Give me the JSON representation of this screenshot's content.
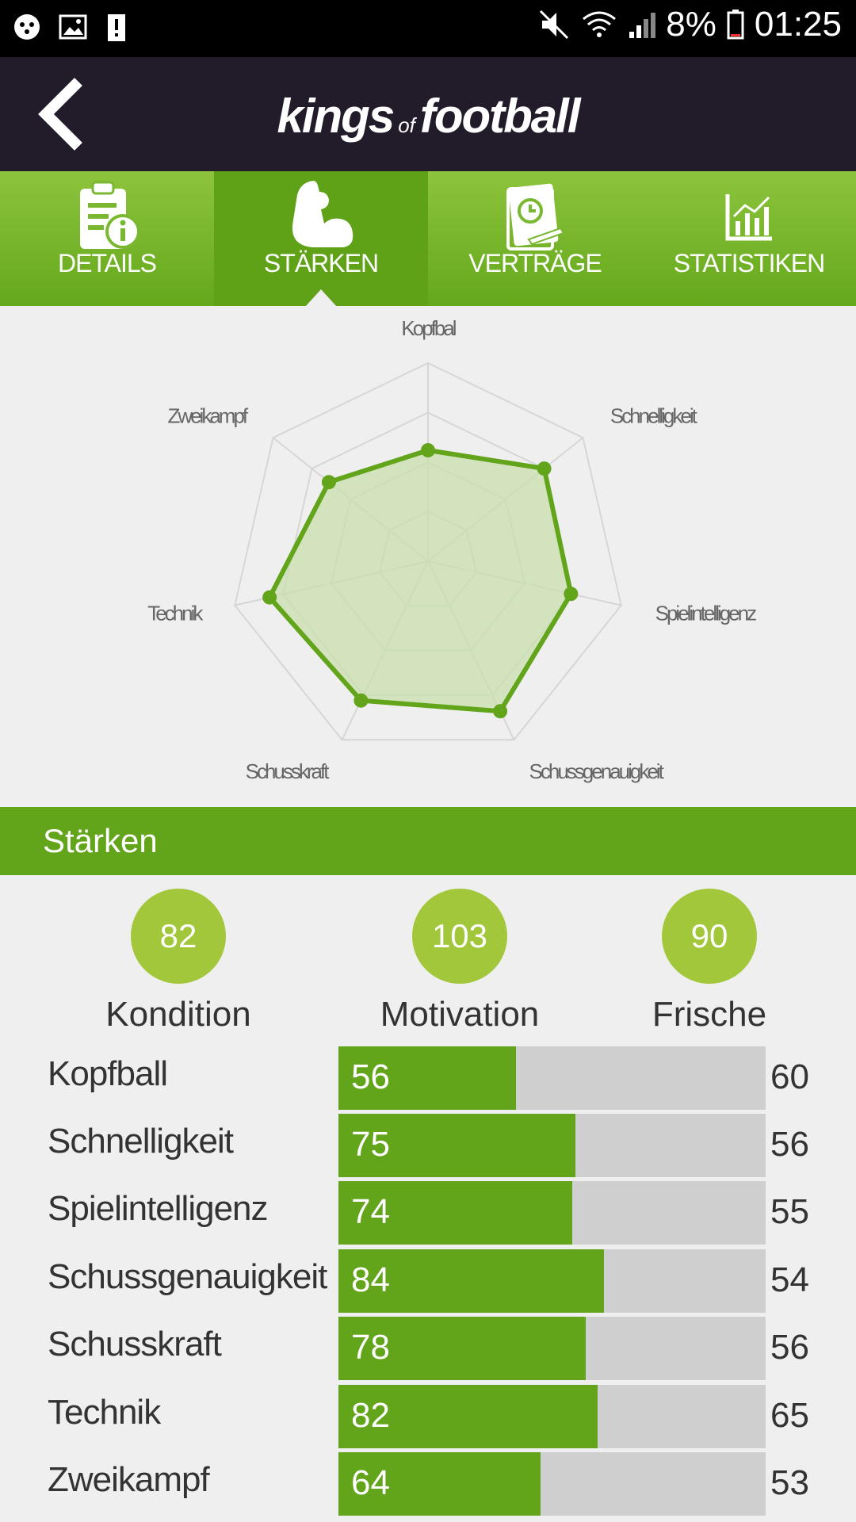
{
  "status_bar": {
    "battery": "8%",
    "time": "01:25",
    "icons": [
      "game-icon",
      "image-icon",
      "alert-icon",
      "mute-icon",
      "wifi-icon",
      "signal-icon",
      "battery-icon"
    ]
  },
  "app": {
    "brand_left": "kings",
    "brand_of": "of",
    "brand_right": "football",
    "back_icon": "chevron-left-icon"
  },
  "tabs": [
    {
      "label": "DETAILS",
      "icon": "details-icon",
      "active": false
    },
    {
      "label": "STÄRKEN",
      "icon": "muscle-icon",
      "active": true
    },
    {
      "label": "VERTRÄGE",
      "icon": "contract-icon",
      "active": false
    },
    {
      "label": "STATISTIKEN",
      "icon": "chart-icon",
      "active": false
    }
  ],
  "chart_data": {
    "type": "radar",
    "axes": [
      "Kopfbal",
      "Schnelligkeit",
      "Spielintelligenz",
      "Schussgenauigkeit",
      "Schusskraft",
      "Technik",
      "Zweikampf"
    ],
    "values": [
      56,
      75,
      74,
      84,
      78,
      82,
      64
    ],
    "range": [
      0,
      100
    ],
    "grid": true,
    "colors": {
      "line": "#62a51b",
      "fill": "#c8dfae",
      "grid": "#d6d6d6"
    }
  },
  "section": {
    "title": "Stärken"
  },
  "summary": [
    {
      "value": "82",
      "label": "Kondition"
    },
    {
      "value": "103",
      "label": "Motivation"
    },
    {
      "value": "90",
      "label": "Frische"
    }
  ],
  "stats": [
    {
      "name": "Kopfball",
      "value": "56",
      "potential": "60",
      "fill_fraction": 0.415
    },
    {
      "name": "Schnelligkeit",
      "value": "75",
      "potential": "56",
      "fill_fraction": 0.555
    },
    {
      "name": "Spielintelligenz",
      "value": "74",
      "potential": "55",
      "fill_fraction": 0.548
    },
    {
      "name": "Schussgenauigkeit",
      "value": "84",
      "potential": "54",
      "fill_fraction": 0.622
    },
    {
      "name": "Schusskraft",
      "value": "78",
      "potential": "56",
      "fill_fraction": 0.578
    },
    {
      "name": "Technik",
      "value": "82",
      "potential": "65",
      "fill_fraction": 0.607
    },
    {
      "name": "Zweikampf",
      "value": "64",
      "potential": "53",
      "fill_fraction": 0.474
    }
  ],
  "colors": {
    "accent": "#62a51b",
    "appbar": "#211b2a",
    "circle": "#a2c73b"
  }
}
